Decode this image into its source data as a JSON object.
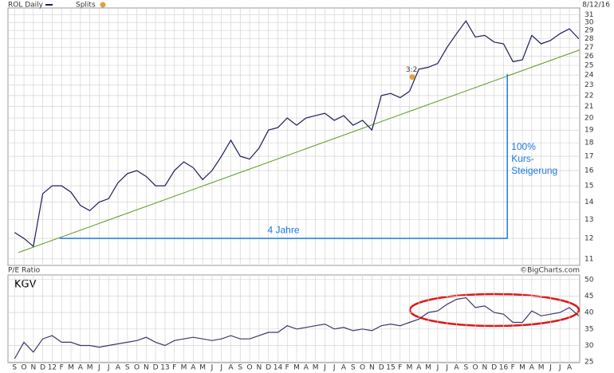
{
  "chart_data": [
    {
      "type": "line",
      "date": "8/12/16",
      "log_scale": true,
      "grid": true,
      "xlim": [
        -0.7,
        60.1
      ],
      "ylim": [
        10.7,
        31.9
      ],
      "yticks": [
        11,
        12,
        13,
        14,
        15,
        16,
        17,
        18,
        19,
        20,
        21,
        22,
        23,
        24,
        25,
        26,
        27,
        28,
        29,
        30,
        31
      ],
      "series": [
        {
          "name": "ROL Daily",
          "color": "#1c1c5c",
          "x": [
            0,
            1,
            2,
            3,
            4,
            5,
            6,
            7,
            8,
            9,
            10,
            11,
            12,
            13,
            14,
            15,
            16,
            17,
            18,
            19,
            20,
            21,
            22,
            23,
            24,
            25,
            26,
            27,
            28,
            29,
            30,
            31,
            32,
            33,
            34,
            35,
            36,
            37,
            38,
            39,
            40,
            41,
            42,
            43,
            44,
            45,
            46,
            47,
            48,
            49,
            50,
            51,
            52,
            53,
            54,
            55,
            56,
            57,
            58,
            59,
            60
          ],
          "values": [
            12.3,
            12.0,
            11.6,
            14.5,
            15.0,
            15.0,
            14.6,
            13.8,
            13.5,
            14.0,
            14.2,
            15.2,
            15.8,
            16.0,
            15.6,
            15.0,
            15.0,
            16.0,
            16.6,
            16.2,
            15.4,
            16.0,
            17.0,
            18.2,
            17.0,
            16.8,
            17.6,
            19.0,
            19.2,
            20.0,
            19.4,
            20.0,
            20.2,
            20.4,
            19.8,
            20.2,
            19.4,
            19.8,
            19.0,
            22.0,
            22.2,
            21.8,
            22.4,
            24.6,
            24.8,
            25.2,
            27.0,
            28.6,
            30.2,
            28.2,
            28.4,
            27.6,
            27.4,
            25.4,
            25.6,
            28.4,
            27.4,
            27.8,
            28.6,
            29.2,
            28.0
          ]
        }
      ],
      "trendline": {
        "color": "#5a9a1e",
        "x": [
          0.4,
          60.1
        ],
        "values": [
          11.3,
          26.7
        ]
      },
      "splits": {
        "label": "Splits",
        "marker": "3:2",
        "x": 42.3,
        "value": 23.8,
        "color": "#e0a040"
      },
      "bracket": {
        "color": "#1e7ae0",
        "x": [
          4.8,
          52.4,
          52.4
        ],
        "values": [
          12,
          12,
          24.1
        ]
      },
      "annotations": [
        "4 Jahre",
        "100%",
        "Kurs-",
        "Steigerung"
      ]
    },
    {
      "type": "line",
      "title": "P/E Ratio",
      "credit": "©BigCharts.com",
      "label": "KGV",
      "grid": true,
      "xlim": [
        -0.7,
        60.1
      ],
      "ylim": [
        24.8,
        51.4
      ],
      "yticks": [
        25,
        30,
        35,
        40,
        45,
        50
      ],
      "xticks": [
        {
          "value": 0,
          "label": "S"
        },
        {
          "value": 1,
          "label": "O"
        },
        {
          "value": 2,
          "label": "N"
        },
        {
          "value": 3,
          "label": "D"
        },
        {
          "value": 4,
          "label": "12"
        },
        {
          "value": 5,
          "label": "F"
        },
        {
          "value": 6,
          "label": "M"
        },
        {
          "value": 7,
          "label": "A"
        },
        {
          "value": 8,
          "label": "M"
        },
        {
          "value": 9,
          "label": "J"
        },
        {
          "value": 10,
          "label": "J"
        },
        {
          "value": 11,
          "label": "A"
        },
        {
          "value": 12,
          "label": "S"
        },
        {
          "value": 13,
          "label": "O"
        },
        {
          "value": 14,
          "label": "N"
        },
        {
          "value": 15,
          "label": "D"
        },
        {
          "value": 16,
          "label": "13"
        },
        {
          "value": 17,
          "label": "F"
        },
        {
          "value": 18,
          "label": "M"
        },
        {
          "value": 19,
          "label": "A"
        },
        {
          "value": 20,
          "label": "M"
        },
        {
          "value": 21,
          "label": "J"
        },
        {
          "value": 22,
          "label": "J"
        },
        {
          "value": 23,
          "label": "A"
        },
        {
          "value": 24,
          "label": "S"
        },
        {
          "value": 25,
          "label": "O"
        },
        {
          "value": 26,
          "label": "N"
        },
        {
          "value": 27,
          "label": "D"
        },
        {
          "value": 28,
          "label": "14"
        },
        {
          "value": 29,
          "label": "F"
        },
        {
          "value": 30,
          "label": "M"
        },
        {
          "value": 31,
          "label": "A"
        },
        {
          "value": 32,
          "label": "M"
        },
        {
          "value": 33,
          "label": "J"
        },
        {
          "value": 34,
          "label": "J"
        },
        {
          "value": 35,
          "label": "A"
        },
        {
          "value": 36,
          "label": "S"
        },
        {
          "value": 37,
          "label": "O"
        },
        {
          "value": 38,
          "label": "N"
        },
        {
          "value": 39,
          "label": "D"
        },
        {
          "value": 40,
          "label": "15"
        },
        {
          "value": 41,
          "label": "F"
        },
        {
          "value": 42,
          "label": "M"
        },
        {
          "value": 43,
          "label": "A"
        },
        {
          "value": 44,
          "label": "M"
        },
        {
          "value": 45,
          "label": "J"
        },
        {
          "value": 46,
          "label": "J"
        },
        {
          "value": 47,
          "label": "A"
        },
        {
          "value": 48,
          "label": "S"
        },
        {
          "value": 49,
          "label": "O"
        },
        {
          "value": 50,
          "label": "N"
        },
        {
          "value": 51,
          "label": "D"
        },
        {
          "value": 52,
          "label": "16"
        },
        {
          "value": 53,
          "label": "F"
        },
        {
          "value": 54,
          "label": "M"
        },
        {
          "value": 55,
          "label": "A"
        },
        {
          "value": 56,
          "label": "M"
        },
        {
          "value": 57,
          "label": "J"
        },
        {
          "value": 58,
          "label": "J"
        },
        {
          "value": 59,
          "label": "A"
        }
      ],
      "series": [
        {
          "color": "#3a3a6a",
          "x": [
            0,
            1,
            2,
            3,
            4,
            5,
            6,
            7,
            8,
            9,
            10,
            11,
            12,
            13,
            14,
            15,
            16,
            17,
            18,
            19,
            20,
            21,
            22,
            23,
            24,
            25,
            26,
            27,
            28,
            29,
            30,
            31,
            32,
            33,
            34,
            35,
            36,
            37,
            38,
            39,
            40,
            41,
            42,
            43,
            44,
            45,
            46,
            47,
            48,
            49,
            50,
            51,
            52,
            53,
            54,
            55,
            56,
            57,
            58,
            59,
            60
          ],
          "values": [
            26,
            31,
            28,
            32,
            33,
            31,
            31,
            30,
            30,
            29.5,
            30,
            30.5,
            31,
            31.5,
            32.5,
            31,
            30,
            31.5,
            32,
            32.5,
            32,
            31.5,
            32,
            33,
            32,
            32,
            33,
            34,
            34,
            36,
            35,
            35.5,
            36,
            36.5,
            35,
            35.5,
            34.5,
            35,
            34.5,
            36,
            36.5,
            36,
            37,
            38,
            40,
            40.5,
            42.5,
            44,
            44.5,
            41.5,
            42,
            40,
            39.5,
            37,
            37,
            40.5,
            39,
            39.5,
            40,
            41.5,
            39
          ]
        }
      ]
    }
  ]
}
